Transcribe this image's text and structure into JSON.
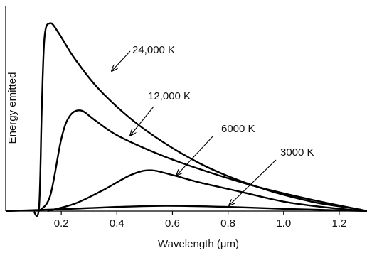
{
  "chart_data": {
    "type": "line",
    "xlabel": "Wavelength (μm)",
    "ylabel": "Energy emitted",
    "xlim": [
      0,
      1.3
    ],
    "ylim": [
      0,
      1.0
    ],
    "x_ticks": [
      "0.2",
      "0.4",
      "0.6",
      "0.8",
      "1.0",
      "1.2"
    ],
    "x_tick_values": [
      0.2,
      0.4,
      0.6,
      0.8,
      1.0,
      1.2
    ],
    "grid": false,
    "series": [
      {
        "name": "24,000 K",
        "x": [
          0.1,
          0.12,
          0.13,
          0.14,
          0.16,
          0.19,
          0.25,
          0.35,
          0.5,
          0.7,
          0.9,
          1.1,
          1.25,
          1.3
        ],
        "y": [
          0.0,
          0.02,
          0.55,
          0.92,
          0.99,
          0.94,
          0.8,
          0.62,
          0.43,
          0.25,
          0.13,
          0.05,
          0.015,
          0.0
        ]
      },
      {
        "name": "12,000 K",
        "x": [
          0.12,
          0.16,
          0.2,
          0.23,
          0.27,
          0.32,
          0.4,
          0.55,
          0.7,
          0.9,
          1.1,
          1.25,
          1.3
        ],
        "y": [
          0.0,
          0.08,
          0.38,
          0.5,
          0.53,
          0.48,
          0.4,
          0.3,
          0.22,
          0.13,
          0.06,
          0.015,
          0.0
        ]
      },
      {
        "name": "6000 K",
        "x": [
          0.15,
          0.25,
          0.35,
          0.45,
          0.52,
          0.6,
          0.7,
          0.85,
          1.0,
          1.15,
          1.3
        ],
        "y": [
          0.0,
          0.04,
          0.11,
          0.19,
          0.215,
          0.19,
          0.15,
          0.1,
          0.05,
          0.02,
          0.0
        ]
      },
      {
        "name": "3000 K",
        "x": [
          0.0,
          0.2,
          0.4,
          0.58,
          0.8,
          1.0,
          1.3
        ],
        "y": [
          0.0,
          0.01,
          0.022,
          0.028,
          0.022,
          0.012,
          0.0
        ]
      }
    ],
    "annotations": [
      {
        "text": "24,000 K",
        "series": "24,000 K"
      },
      {
        "text": "12,000 K",
        "series": "12,000 K"
      },
      {
        "text": "6000 K",
        "series": "6000 K"
      },
      {
        "text": "3000 K",
        "series": "3000 K"
      }
    ],
    "colors": {
      "line": "#000000",
      "text": "#111111"
    }
  }
}
